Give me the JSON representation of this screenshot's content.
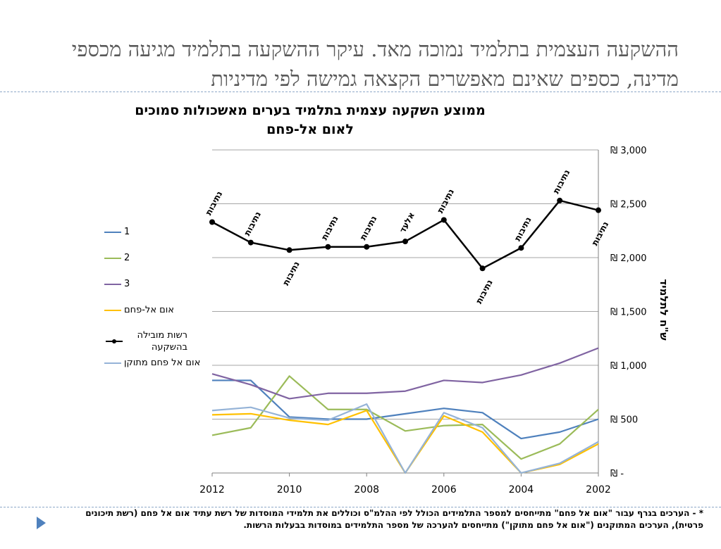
{
  "slide": {
    "title": "ההשקעה העצמית בתלמיד נמוכה מאד. עיקר ההשקעה בתלמיד מגיעה מכספי מדינה, כספים שאינם מאפשרים הקצאה גמישה לפי מדיניות",
    "footnote": "* - הערכים בגרף עבור \"אום אל פחם\" מתייחסים למספר התלמידים הכולל לפי ההלמ\"ס וכוללים את תלמידי המוסדות של רשת עתיד אום אל פחם (רשת תיכונים פרטית), הערכים המתוקנים (\"אום אל פחם מתוקן\") מתייחסים להערכה של מספר התלמידים במוסדות בבעלות הרשות."
  },
  "chart_data": {
    "type": "line",
    "title": "ממוצע השקעה עצמית בתלמיד בערים מאשכולות סמוכים לאום אל-פחם",
    "xlabel": "",
    "ylabel": "ש\"ח לתלמיד",
    "x": [
      2012,
      2011,
      2010,
      2009,
      2008,
      2007,
      2006,
      2005,
      2004,
      2003,
      2002
    ],
    "x_ticks": [
      "2012",
      "2010",
      "2008",
      "2006",
      "2004",
      "2002"
    ],
    "x_reversed": true,
    "ylim": [
      0,
      3000
    ],
    "y_ticks": [
      "₪ -",
      "₪ 500",
      "₪ 1,000",
      "₪ 1,500",
      "₪ 2,000",
      "₪ 2,500",
      "₪ 3,000"
    ],
    "y_axis_side": "right",
    "grid": true,
    "legend_position": "left",
    "series": [
      {
        "name": "1",
        "color": "#4f81bd",
        "values": [
          860,
          860,
          520,
          500,
          500,
          550,
          600,
          560,
          320,
          380,
          500
        ]
      },
      {
        "name": "2",
        "color": "#9bbb59",
        "values": [
          350,
          420,
          900,
          590,
          590,
          390,
          440,
          450,
          130,
          270,
          590
        ]
      },
      {
        "name": "3",
        "color": "#8064a2",
        "values": [
          920,
          820,
          690,
          740,
          740,
          760,
          860,
          840,
          910,
          1020,
          1160
        ]
      },
      {
        "name": "אום אל-פחם",
        "color": "#ffc000",
        "values": [
          540,
          550,
          490,
          450,
          580,
          0,
          530,
          380,
          0,
          80,
          270
        ]
      },
      {
        "name": "רשות מובילה בהשקעה",
        "color": "#000000",
        "marker": "circle",
        "values": [
          2330,
          2140,
          2070,
          2100,
          2100,
          2150,
          2350,
          1900,
          2090,
          2530,
          2440
        ],
        "point_labels": [
          "נתיבות",
          "נתיבות",
          "נתיבות",
          "נתיבות",
          "נתיבות",
          "אלעד",
          "נתיבות",
          "נתיבות",
          "נתיבות",
          "נתיבות",
          "נתיבות"
        ]
      },
      {
        "name": "אום אל פחם מתוקן",
        "color": "#95b3d7",
        "values": [
          580,
          610,
          510,
          490,
          640,
          0,
          560,
          420,
          0,
          90,
          290
        ]
      }
    ]
  }
}
